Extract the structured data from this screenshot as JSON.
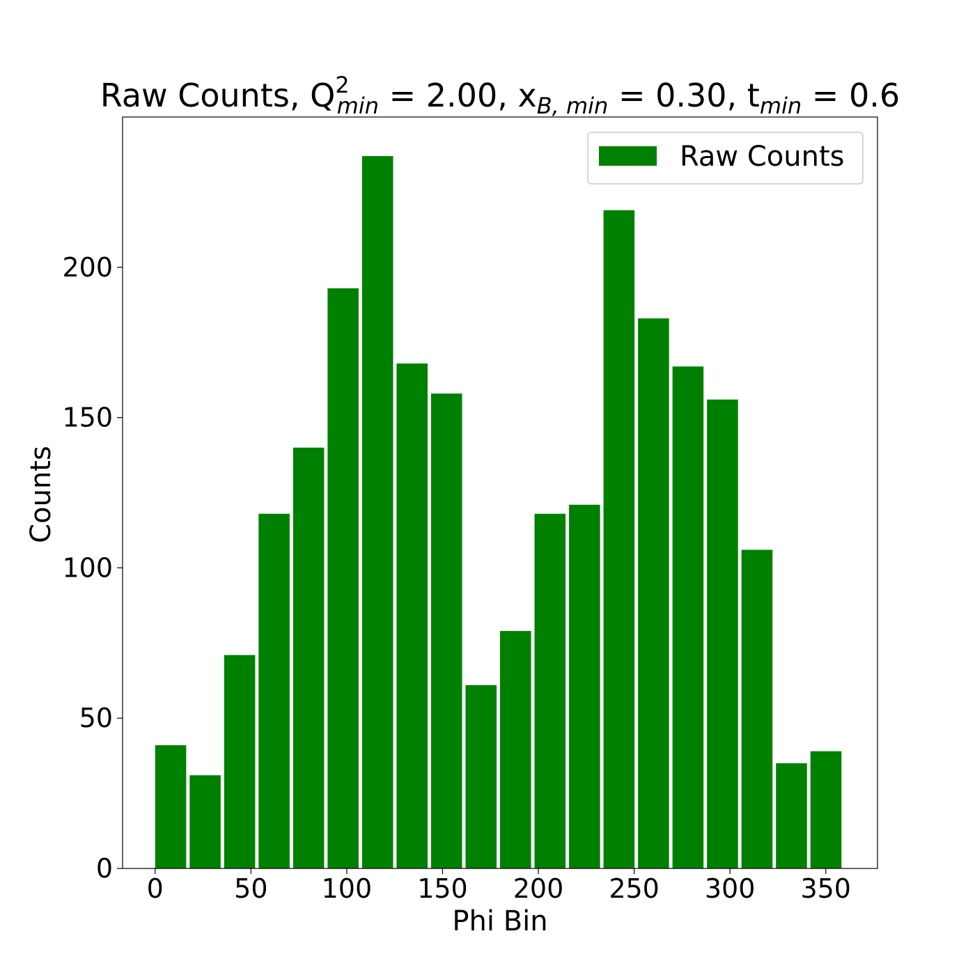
{
  "chart_data": {
    "type": "bar",
    "title": {
      "t1": "Raw Counts, Q",
      "sup1": "2",
      "sub1": "min",
      "t2": " = 2.00, x",
      "sub2": "B, min",
      "t3": " = 0.30, t",
      "sub3": "min",
      "t4": " = 0.6"
    },
    "xlabel": "Phi Bin",
    "ylabel": "Counts",
    "x": [
      0,
      18,
      36,
      54,
      72,
      90,
      108,
      126,
      144,
      162,
      180,
      198,
      216,
      234,
      252,
      270,
      288,
      306,
      324,
      342
    ],
    "bin_width": 18,
    "values": [
      41,
      31,
      71,
      118,
      140,
      193,
      237,
      168,
      158,
      61,
      79,
      118,
      121,
      219,
      183,
      167,
      156,
      106,
      35,
      39
    ],
    "xlim": [
      -17,
      377
    ],
    "ylim": [
      0,
      250
    ],
    "xticks": [
      0,
      50,
      100,
      150,
      200,
      250,
      300,
      350
    ],
    "yticks": [
      0,
      50,
      100,
      150,
      200
    ],
    "grid": false,
    "legend": {
      "position": "top-right",
      "entries": [
        {
          "label": "Raw Counts",
          "color": "#008000"
        }
      ]
    },
    "bar_color": "#008000"
  }
}
